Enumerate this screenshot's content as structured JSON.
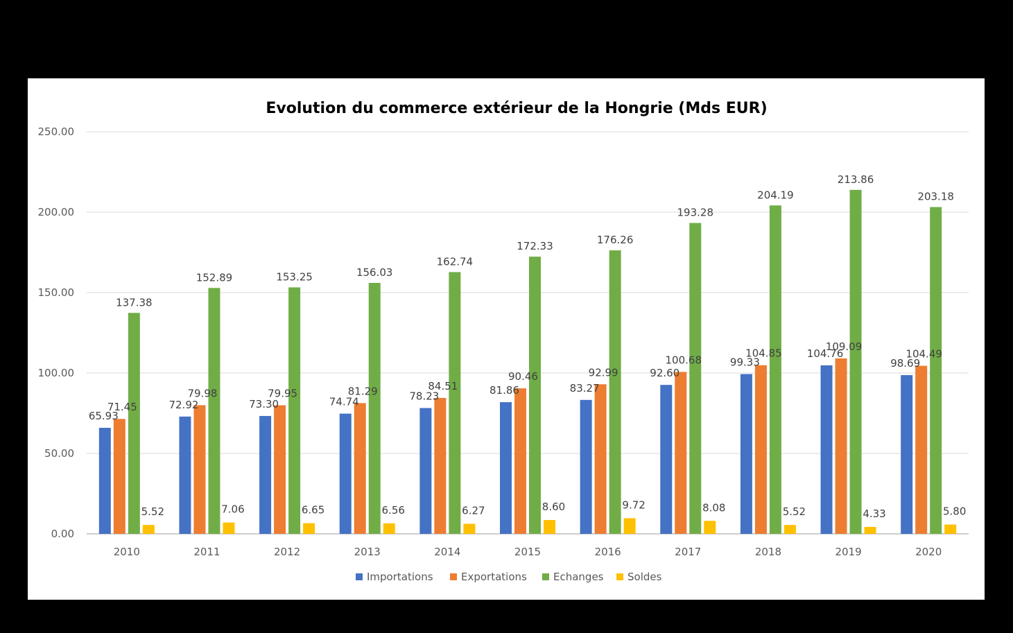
{
  "chart_data": {
    "type": "bar",
    "title": "Evolution du commerce extérieur de la Hongrie (Mds EUR)",
    "xlabel": "",
    "ylabel": "",
    "ylim": [
      0,
      250
    ],
    "yticks": [
      "0.00",
      "50.00",
      "100.00",
      "150.00",
      "200.00",
      "250.00"
    ],
    "grid": true,
    "legend_position": "bottom",
    "categories": [
      "2010",
      "2011",
      "2012",
      "2013",
      "2014",
      "2015",
      "2016",
      "2017",
      "2018",
      "2019",
      "2020"
    ],
    "series": [
      {
        "name": "Importations",
        "color": "#4472C4",
        "values": [
          65.93,
          72.92,
          73.3,
          74.74,
          78.23,
          81.86,
          83.27,
          92.6,
          99.33,
          104.76,
          98.69
        ],
        "labels": [
          "65.93",
          "72.92",
          "73.30",
          "74.74",
          "78.23",
          "81.86",
          "83.27",
          "92.60",
          "99.33",
          "104.76",
          "98.69"
        ]
      },
      {
        "name": "Exportations",
        "color": "#ED7D31",
        "values": [
          71.45,
          79.98,
          79.95,
          81.29,
          84.51,
          90.46,
          92.99,
          100.68,
          104.85,
          109.09,
          104.49
        ],
        "labels": [
          "71.45",
          "79.98",
          "79.95",
          "81.29",
          "84.51",
          "90.46",
          "92.99",
          "100.68",
          "104.85",
          "109.09",
          "104.49"
        ]
      },
      {
        "name": "Echanges",
        "color": "#70AD47",
        "values": [
          137.38,
          152.89,
          153.25,
          156.03,
          162.74,
          172.33,
          176.26,
          193.28,
          204.19,
          213.86,
          203.18
        ],
        "labels": [
          "137.38",
          "152.89",
          "153.25",
          "156.03",
          "162.74",
          "172.33",
          "176.26",
          "193.28",
          "204.19",
          "213.86",
          "203.18"
        ]
      },
      {
        "name": "Soldes",
        "color": "#FFC000",
        "values": [
          5.52,
          7.06,
          6.65,
          6.56,
          6.27,
          8.6,
          9.72,
          8.08,
          5.52,
          4.33,
          5.8
        ],
        "labels": [
          "5.52",
          "7.06",
          "6.65",
          "6.56",
          "6.27",
          "8.60",
          "9.72",
          "8.08",
          "5.52",
          "4.33",
          "5.80"
        ]
      }
    ]
  }
}
